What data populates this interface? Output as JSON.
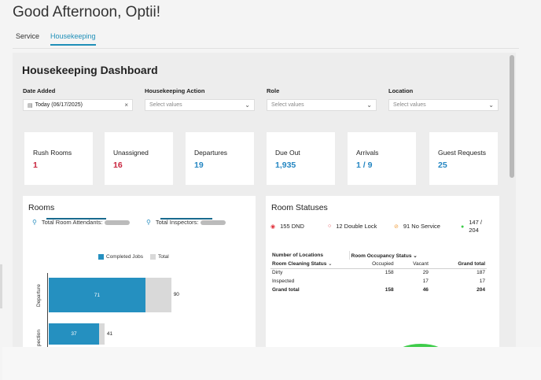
{
  "greeting": "Good Afternoon, Optii!",
  "tabs": [
    {
      "label": "Service",
      "active": false
    },
    {
      "label": "Housekeeping",
      "active": true
    }
  ],
  "dashboard": {
    "title": "Housekeeping Dashboard",
    "filters": [
      {
        "label": "Date Added",
        "value": "Today (06/17/2025)",
        "placeholder": "",
        "icon": "calendar-icon",
        "control": "clear-icon"
      },
      {
        "label": "Housekeeping Action",
        "value": "",
        "placeholder": "Select values",
        "control": "chevron-down-icon"
      },
      {
        "label": "Role",
        "value": "",
        "placeholder": "Select values",
        "control": "chevron-down-icon"
      },
      {
        "label": "Location",
        "value": "",
        "placeholder": "Select values",
        "control": "chevron-down-icon"
      }
    ],
    "stats": [
      {
        "label": "Rush Rooms",
        "value": "1",
        "color": "#c8233c"
      },
      {
        "label": "Unassigned",
        "value": "16",
        "color": "#c8233c"
      },
      {
        "label": "Departures",
        "value": "19",
        "color": "#2486c2"
      },
      {
        "label": "Due Out",
        "value": "1,935",
        "color": "#2486c2"
      },
      {
        "label": "Arrivals",
        "value": "1 / 9",
        "color": "#2486c2"
      },
      {
        "label": "Guest Requests",
        "value": "25",
        "color": "#2486c2"
      }
    ]
  },
  "rooms": {
    "title": "Rooms",
    "attendants_label": "Total Room Attendants:",
    "inspectors_label": "Total Inspectors:",
    "chart_data": {
      "type": "bar",
      "orientation": "horizontal",
      "categories": [
        "Departure",
        "pection"
      ],
      "series": [
        {
          "name": "Completed Jobs",
          "values": [
            71,
            37
          ],
          "color": "#2590c0"
        },
        {
          "name": "Total",
          "values": [
            90,
            41
          ],
          "color": "#d9d9d9"
        }
      ],
      "legend": "top",
      "grid": false
    }
  },
  "room_statuses": {
    "title": "Room Statuses",
    "items": [
      {
        "label": "155 DND",
        "icon": "dnd-icon",
        "color": "#e0303a"
      },
      {
        "label": "12 Double Lock",
        "icon": "lock-icon",
        "color": "#e0303a"
      },
      {
        "label": "91 No Service",
        "icon": "no-service-icon",
        "color": "#f0a040"
      },
      {
        "label": "147 / 204",
        "icon": "check-circle-icon",
        "color": "#3ecc4a"
      }
    ],
    "table": {
      "header1": "Number of Locations",
      "header2": "Room Occupancy Status",
      "col0": "Room Cleaning Status",
      "col1": "Occupied",
      "col2": "Vacant",
      "col3": "Grand total",
      "rows": [
        {
          "status": "Dirty",
          "occupied": "158",
          "vacant": "29",
          "total": "187"
        },
        {
          "status": "Inspected",
          "occupied": "",
          "vacant": "17",
          "total": "17"
        },
        {
          "status": "Grand total",
          "occupied": "158",
          "vacant": "46",
          "total": "204"
        }
      ]
    }
  }
}
